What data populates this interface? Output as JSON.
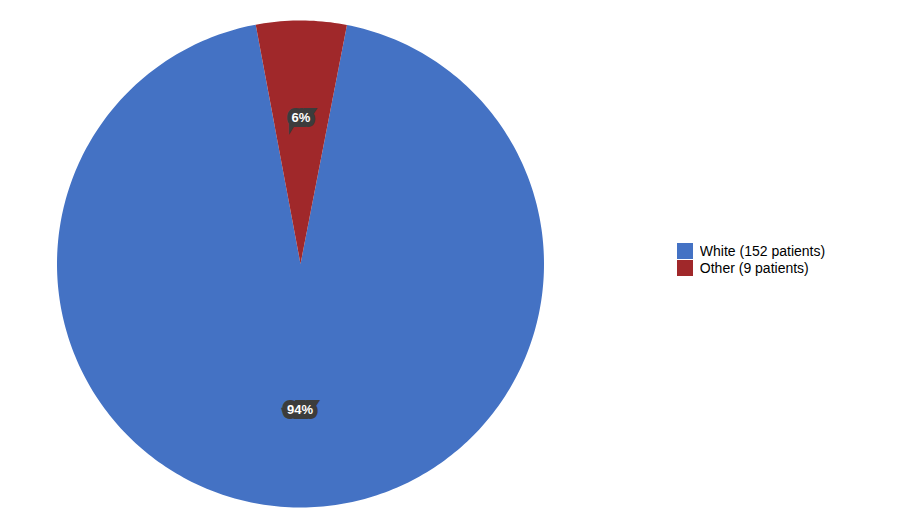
{
  "chart_data": {
    "type": "pie",
    "categories": [
      "White (152 patients)",
      "Other (9 patients)"
    ],
    "values": [
      94,
      6
    ],
    "value_labels": [
      "94%",
      "6%"
    ],
    "colors": [
      "#4472C4",
      "#A0282A"
    ],
    "data_labels": true,
    "legend": "right"
  }
}
